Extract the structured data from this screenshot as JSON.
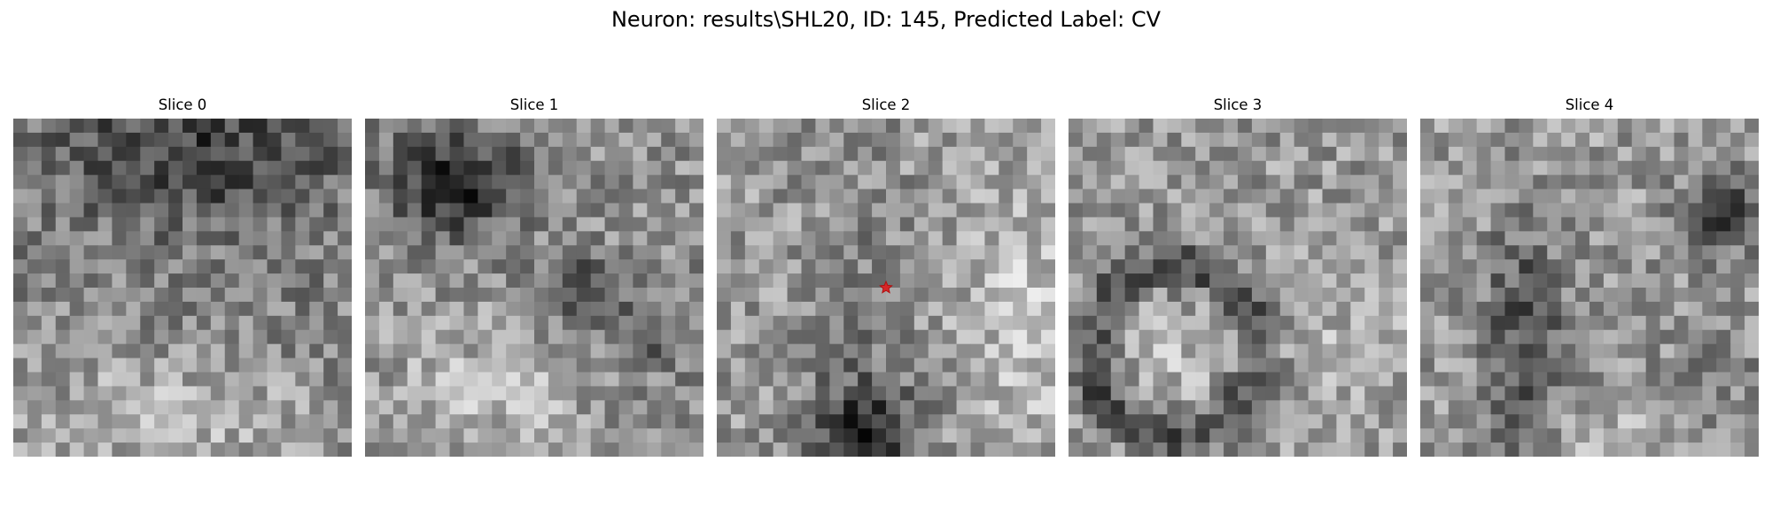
{
  "figure": {
    "title": "Neuron: results\\SHL20, ID: 145, Predicted Label: CV"
  },
  "slices": [
    {
      "title": "Slice 0",
      "marker": false
    },
    {
      "title": "Slice 1",
      "marker": false
    },
    {
      "title": "Slice 2",
      "marker": true
    },
    {
      "title": "Slice 3",
      "marker": false
    },
    {
      "title": "Slice 4",
      "marker": false
    }
  ],
  "colormap": "gray",
  "marker": {
    "color": "#d62728",
    "shape": "star",
    "icon": "red-star-marker"
  }
}
